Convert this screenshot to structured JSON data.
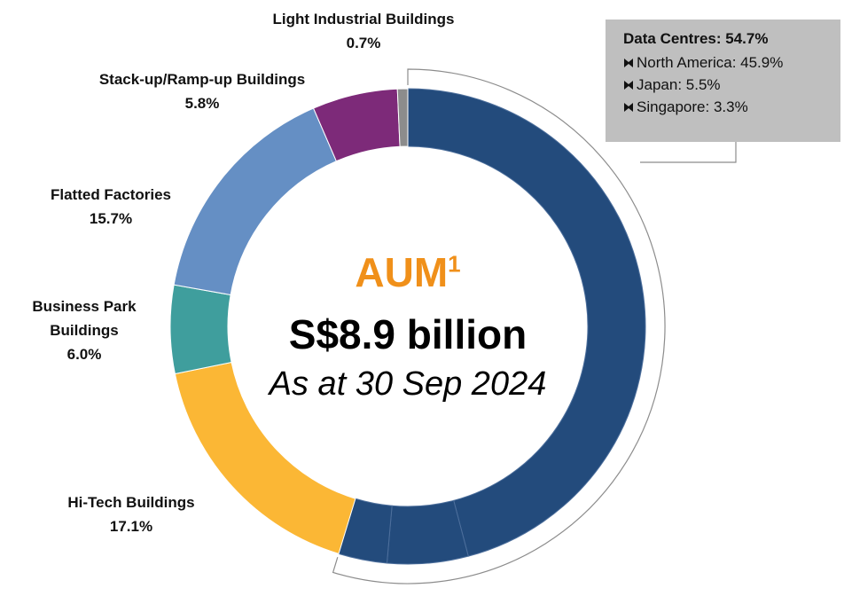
{
  "chart_data": {
    "type": "pie",
    "donut": true,
    "center_title": "AUM",
    "center_title_note": "1",
    "center_value": "S$8.9 billion",
    "center_subtitle": "As at 30 Sep 2024",
    "categories": [
      null,
      "Hi-Tech Buildings",
      "Business Park Buildings",
      "Flatted Factories",
      "Stack-up/Ramp-up Buildings",
      "Light Industrial Buildings"
    ],
    "values": [
      54.7,
      17.1,
      6.0,
      15.7,
      5.8,
      0.7
    ],
    "value_labels": [
      "Data Centres: 54.7%",
      "17.1%",
      "6.0%",
      "15.7%",
      "5.8%",
      "0.7%"
    ],
    "colors": [
      "#234b7c",
      "#fbb735",
      "#3f9e9d",
      "#658fc4",
      "#7d2a79",
      "#8c8c8c"
    ],
    "breakdown": {
      "labels": [
        "North America: 45.9%",
        "Japan: 5.5%",
        "Singapore: 3.3%"
      ],
      "values": [
        45.9,
        5.5,
        3.3
      ]
    }
  }
}
